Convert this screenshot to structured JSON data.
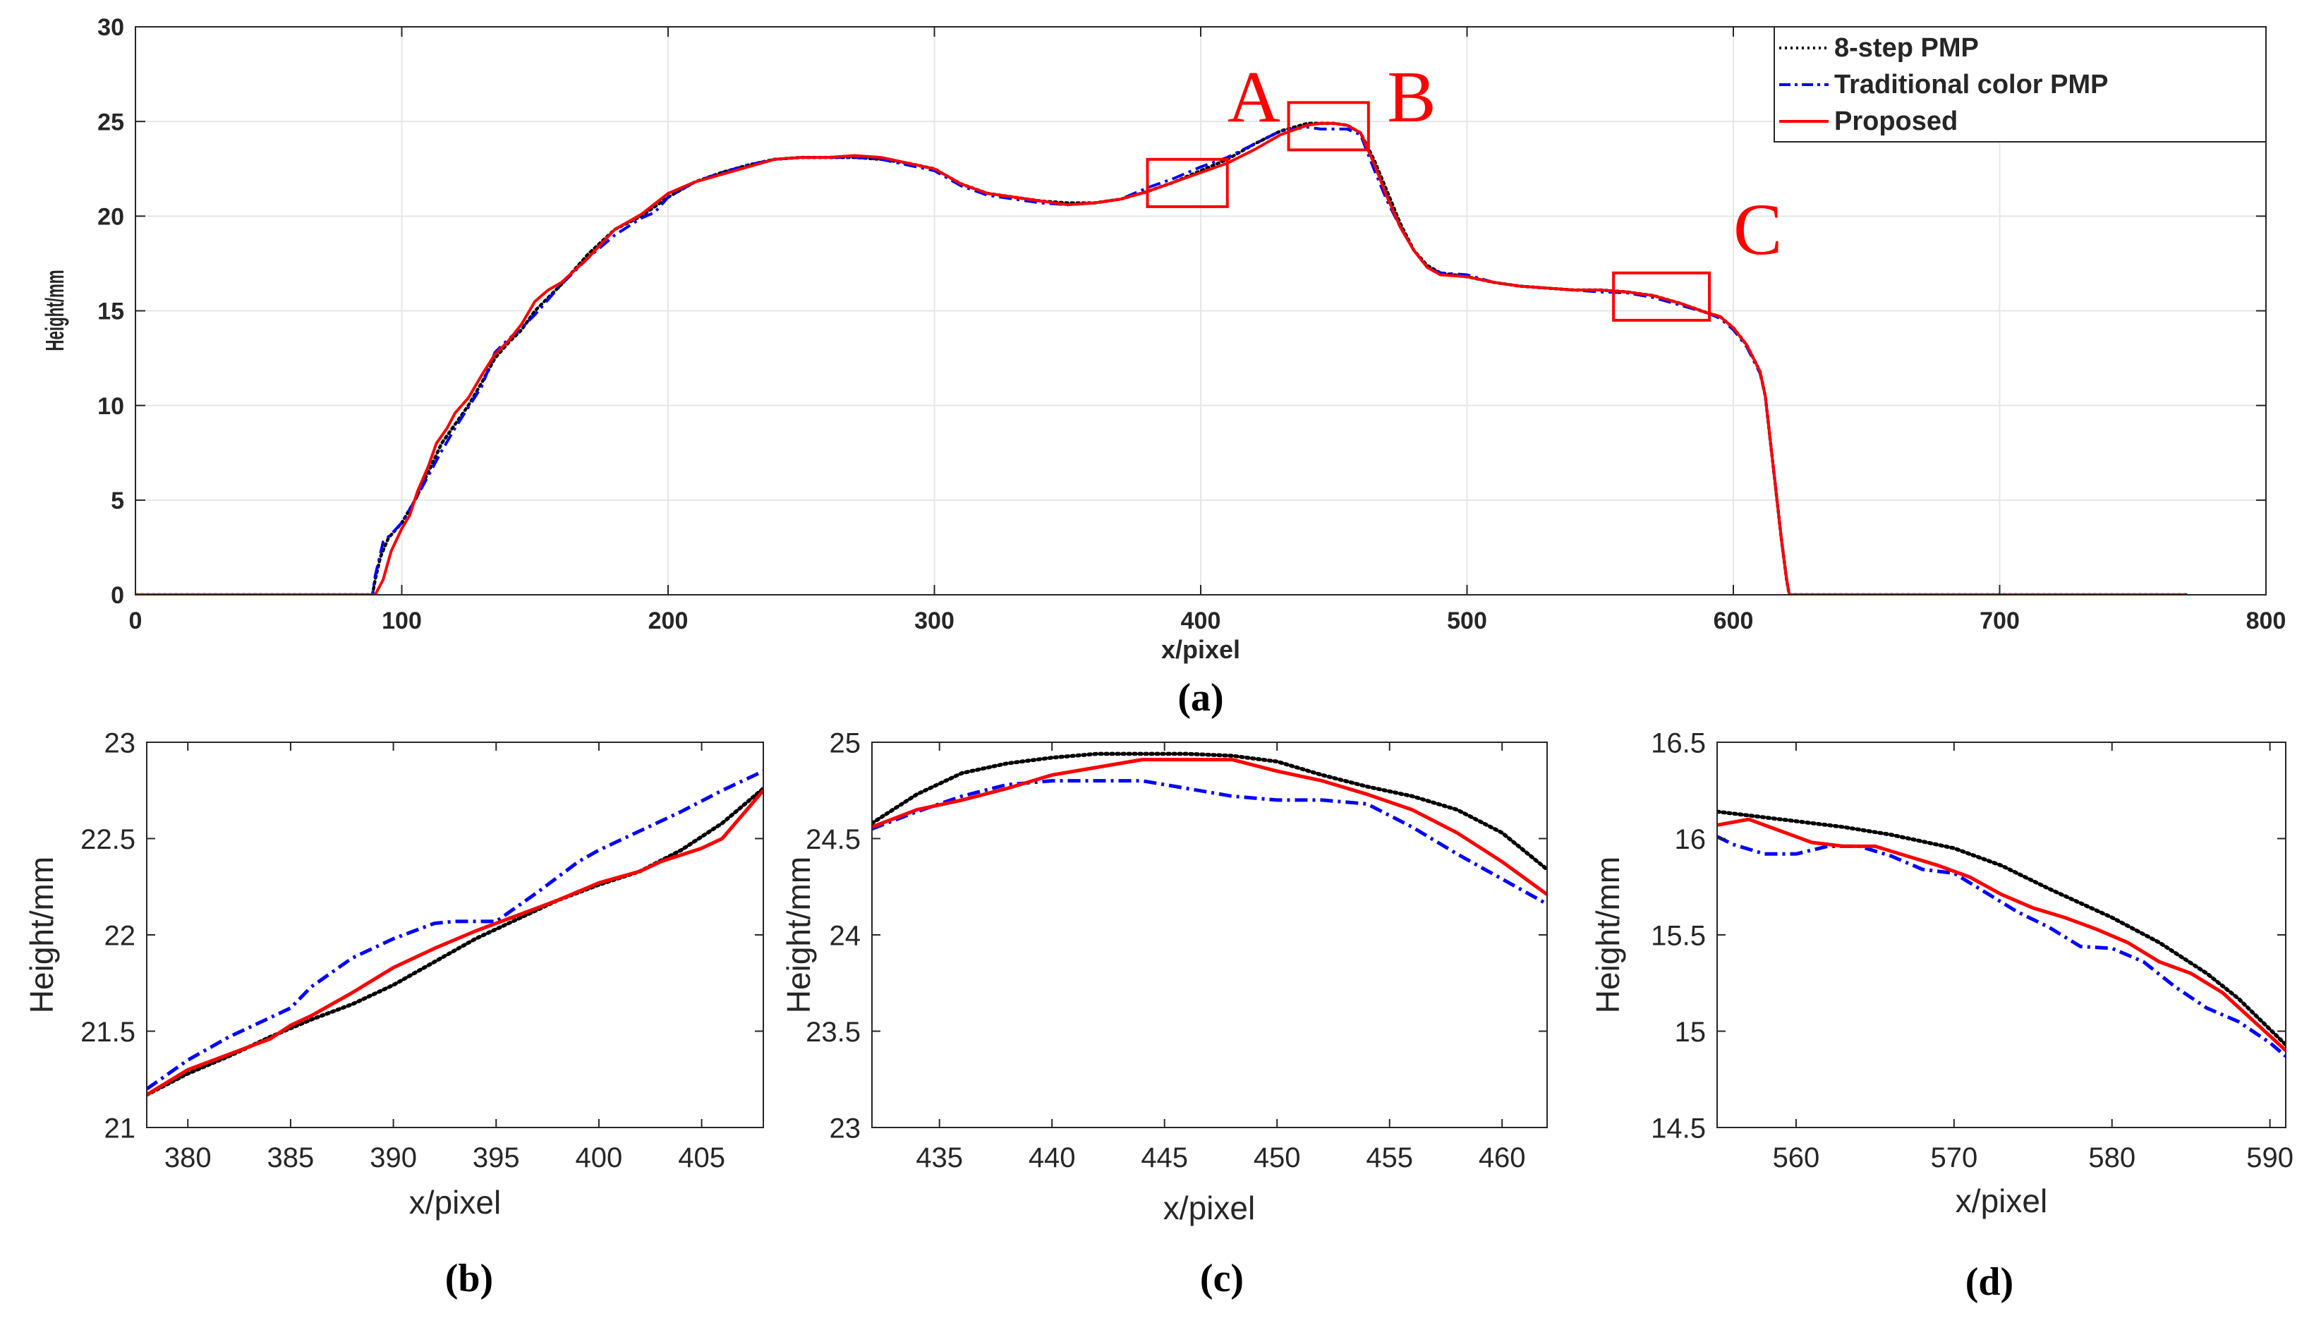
{
  "figure": {
    "colors": {
      "eight_step": "#000000",
      "traditional": "#0000ff",
      "proposed": "#ff0000",
      "grid": "#e6e6e6",
      "axis": "#262626",
      "callout": "#ff0000"
    }
  },
  "chart_data": [
    {
      "id": "a",
      "type": "line",
      "panel_label": "(a)",
      "title": "",
      "xlabel": "x/pixel",
      "ylabel": "Height/mm",
      "xlim": [
        0,
        800
      ],
      "ylim": [
        0,
        30
      ],
      "xticks": [
        0,
        100,
        200,
        300,
        400,
        500,
        600,
        700,
        800
      ],
      "yticks": [
        0,
        5,
        10,
        15,
        20,
        25,
        30
      ],
      "xtick_labels": [
        "0",
        "100",
        "200",
        "300",
        "400",
        "500",
        "600",
        "700",
        "800"
      ],
      "ytick_labels": [
        "0",
        "5",
        "10",
        "15",
        "20",
        "25",
        "30"
      ],
      "grid": true,
      "legend": {
        "position": "top-right",
        "entries": [
          "8-step PMP",
          "Traditional color PMP",
          "Proposed"
        ]
      },
      "annotations": [
        {
          "text": "A",
          "x_range": [
            380,
            410
          ],
          "y_range": [
            20.5,
            23
          ],
          "label_x": 410,
          "label_y": 25
        },
        {
          "text": "B",
          "x_range": [
            433,
            463
          ],
          "y_range": [
            23.5,
            26
          ],
          "label_x": 470,
          "label_y": 25
        },
        {
          "text": "C",
          "x_range": [
            555,
            591
          ],
          "y_range": [
            14.5,
            17
          ],
          "label_x": 600,
          "label_y": 18
        }
      ],
      "series": [
        {
          "name": "8-step PMP",
          "style": "dotted",
          "color": "#000000",
          "x": [
            0,
            89,
            90,
            92,
            95,
            100,
            105,
            110,
            115,
            120,
            125,
            130,
            135,
            140,
            145,
            150,
            160,
            170,
            180,
            190,
            200,
            210,
            220,
            230,
            240,
            250,
            260,
            270,
            280,
            290,
            300,
            310,
            320,
            330,
            340,
            350,
            360,
            370,
            380,
            390,
            400,
            410,
            420,
            430,
            440,
            445,
            450,
            455,
            460,
            465,
            470,
            475,
            480,
            485,
            490,
            500,
            510,
            520,
            530,
            540,
            550,
            560,
            570,
            580,
            590,
            595,
            600,
            605,
            610,
            612,
            614,
            616,
            618,
            620,
            621,
            625,
            700,
            770
          ],
          "y": [
            0,
            0,
            0.8,
            2,
            3,
            3.8,
            5,
            6.5,
            8,
            9,
            10,
            11.2,
            12.5,
            13.3,
            14,
            15,
            16.4,
            18,
            19.3,
            20,
            21,
            21.8,
            22.3,
            22.7,
            23,
            23.1,
            23.1,
            23.1,
            23,
            22.8,
            22.5,
            21.7,
            21.2,
            21,
            20.8,
            20.7,
            20.7,
            20.9,
            21.3,
            21.8,
            22.4,
            23,
            23.8,
            24.5,
            24.9,
            24.9,
            24.9,
            24.8,
            24.4,
            23,
            21.3,
            19.6,
            18.2,
            17.4,
            17,
            16.8,
            16.5,
            16.3,
            16.2,
            16.1,
            16.1,
            16,
            15.8,
            15.4,
            14.9,
            14.7,
            14.1,
            13.2,
            11.8,
            10.5,
            8,
            5.5,
            3,
            0.8,
            0,
            0,
            0,
            0
          ]
        },
        {
          "name": "Traditional color PMP",
          "style": "dashdot",
          "color": "#0000ff",
          "x": [
            0,
            89,
            90,
            93,
            96,
            100,
            105,
            110,
            115,
            120,
            125,
            130,
            135,
            140,
            145,
            150,
            160,
            170,
            180,
            190,
            195,
            200,
            210,
            220,
            230,
            240,
            250,
            260,
            270,
            280,
            290,
            300,
            310,
            320,
            330,
            340,
            350,
            360,
            370,
            380,
            390,
            400,
            410,
            420,
            430,
            440,
            445,
            450,
            455,
            460,
            465,
            470,
            475,
            480,
            485,
            490,
            500,
            510,
            520,
            530,
            540,
            550,
            560,
            570,
            580,
            590,
            595,
            600,
            605,
            610,
            612,
            614,
            616,
            618,
            620,
            621,
            625,
            700,
            770
          ],
          "y": [
            0,
            0,
            1,
            2.8,
            3.2,
            3.8,
            5,
            6.3,
            7.6,
            8.8,
            9.9,
            11,
            12.8,
            13.5,
            14.1,
            14.8,
            16.4,
            17.8,
            19,
            19.9,
            20.2,
            21,
            21.8,
            22.3,
            22.7,
            23,
            23.1,
            23.1,
            23.1,
            23,
            22.7,
            22.4,
            21.6,
            21.1,
            20.9,
            20.7,
            20.6,
            20.7,
            20.9,
            21.5,
            22,
            22.6,
            23.1,
            23.8,
            24.5,
            24.7,
            24.6,
            24.6,
            24.6,
            24.3,
            22.5,
            20.8,
            19.4,
            18.2,
            17.3,
            17,
            16.9,
            16.5,
            16.3,
            16.2,
            16.1,
            16,
            15.95,
            15.7,
            15.3,
            14.9,
            14.6,
            14,
            13.1,
            11.7,
            10.5,
            8,
            5.5,
            3,
            0.8,
            0,
            0,
            0,
            0
          ]
        },
        {
          "name": "Proposed",
          "style": "solid",
          "color": "#ff0000",
          "x": [
            0,
            89,
            90,
            93,
            96,
            100,
            103,
            106,
            110,
            113,
            117,
            120,
            125,
            130,
            135,
            140,
            145,
            150,
            155,
            160,
            170,
            180,
            190,
            200,
            210,
            220,
            230,
            240,
            250,
            260,
            270,
            280,
            290,
            300,
            310,
            320,
            330,
            340,
            350,
            360,
            370,
            380,
            390,
            400,
            410,
            420,
            430,
            440,
            445,
            450,
            455,
            460,
            465,
            470,
            475,
            480,
            485,
            490,
            500,
            510,
            520,
            530,
            540,
            550,
            560,
            570,
            580,
            590,
            595,
            600,
            605,
            610,
            612,
            614,
            616,
            618,
            620,
            621,
            625,
            700,
            770
          ],
          "y": [
            0,
            0,
            0,
            0.8,
            2.3,
            3.5,
            4.2,
            5.5,
            6.8,
            8,
            8.8,
            9.6,
            10.4,
            11.6,
            12.7,
            13.4,
            14.3,
            15.5,
            16.1,
            16.5,
            17.8,
            19.3,
            20.1,
            21.2,
            21.8,
            22.2,
            22.6,
            23,
            23.1,
            23.1,
            23.2,
            23.1,
            22.8,
            22.5,
            21.7,
            21.2,
            21,
            20.8,
            20.6,
            20.7,
            20.9,
            21.3,
            21.8,
            22.3,
            22.8,
            23.5,
            24.3,
            24.8,
            24.9,
            24.9,
            24.8,
            24.4,
            22.8,
            21,
            19.4,
            18.2,
            17.3,
            16.9,
            16.8,
            16.5,
            16.3,
            16.2,
            16.1,
            16.1,
            16,
            15.8,
            15.4,
            14.9,
            14.7,
            14.1,
            13.2,
            11.8,
            10.5,
            8,
            5.5,
            3,
            0.8,
            0,
            0,
            0,
            0
          ]
        }
      ]
    },
    {
      "id": "b",
      "type": "line",
      "panel_label": "(b)",
      "title": "",
      "xlabel": "x/pixel",
      "ylabel": "Height/mm",
      "xlim": [
        378,
        408
      ],
      "ylim": [
        21,
        23
      ],
      "xticks": [
        380,
        385,
        390,
        395,
        400,
        405
      ],
      "yticks": [
        21,
        21.5,
        22,
        22.5,
        23
      ],
      "xtick_labels": [
        "380",
        "385",
        "390",
        "395",
        "400",
        "405"
      ],
      "ytick_labels": [
        "21",
        "21.5",
        "22",
        "22.5",
        "23"
      ],
      "grid": false,
      "series": [
        {
          "name": "8-step PMP",
          "style": "dotted",
          "color": "#000000",
          "x": [
            378,
            380,
            382,
            384,
            386,
            388,
            390,
            392,
            394,
            396,
            398,
            400,
            402,
            404,
            406,
            408
          ],
          "y": [
            21.17,
            21.28,
            21.37,
            21.47,
            21.56,
            21.64,
            21.74,
            21.86,
            21.98,
            22.08,
            22.18,
            22.26,
            22.33,
            22.44,
            22.58,
            22.76
          ]
        },
        {
          "name": "Traditional color PMP",
          "style": "dashdot",
          "color": "#0000ff",
          "x": [
            378,
            380,
            382,
            384,
            385,
            386,
            388,
            390,
            392,
            393,
            395,
            397,
            399,
            400,
            402,
            404,
            406,
            408
          ],
          "y": [
            21.2,
            21.35,
            21.47,
            21.57,
            21.62,
            21.73,
            21.88,
            21.98,
            22.06,
            22.07,
            22.07,
            22.22,
            22.38,
            22.44,
            22.54,
            22.64,
            22.75,
            22.85
          ]
        },
        {
          "name": "Proposed",
          "style": "solid",
          "color": "#ff0000",
          "x": [
            378,
            380,
            382,
            384,
            385,
            386,
            388,
            390,
            392,
            394,
            396,
            398,
            400,
            402,
            403,
            405,
            406,
            408
          ],
          "y": [
            21.17,
            21.3,
            21.38,
            21.46,
            21.53,
            21.58,
            21.7,
            21.83,
            21.93,
            22.02,
            22.1,
            22.18,
            22.27,
            22.33,
            22.38,
            22.45,
            22.5,
            22.75
          ]
        }
      ]
    },
    {
      "id": "c",
      "type": "line",
      "panel_label": "(c)",
      "title": "",
      "xlabel": "x/pixel",
      "ylabel": "Height/mm",
      "xlim": [
        432,
        462
      ],
      "ylim": [
        23,
        25
      ],
      "xticks": [
        435,
        440,
        445,
        450,
        455,
        460
      ],
      "yticks": [
        23,
        23.5,
        24,
        24.5,
        25
      ],
      "xtick_labels": [
        "435",
        "440",
        "445",
        "450",
        "455",
        "460"
      ],
      "ytick_labels": [
        "23",
        "23.5",
        "24",
        "24.5",
        "25"
      ],
      "grid": false,
      "series": [
        {
          "name": "8-step PMP",
          "style": "dotted",
          "color": "#000000",
          "x": [
            432,
            434,
            436,
            438,
            440,
            442,
            444,
            446,
            448,
            450,
            452,
            454,
            456,
            458,
            460,
            462
          ],
          "y": [
            24.58,
            24.73,
            24.84,
            24.89,
            24.92,
            24.94,
            24.94,
            24.94,
            24.93,
            24.9,
            24.83,
            24.77,
            24.72,
            24.65,
            24.53,
            24.34
          ]
        },
        {
          "name": "Traditional color PMP",
          "style": "dashdot",
          "color": "#0000ff",
          "x": [
            432,
            434,
            436,
            438,
            440,
            442,
            444,
            446,
            448,
            450,
            452,
            454,
            456,
            458,
            460,
            462
          ],
          "y": [
            24.55,
            24.64,
            24.72,
            24.78,
            24.8,
            24.8,
            24.8,
            24.76,
            24.72,
            24.7,
            24.7,
            24.68,
            24.56,
            24.42,
            24.29,
            24.16
          ]
        },
        {
          "name": "Proposed",
          "style": "solid",
          "color": "#ff0000",
          "x": [
            432,
            434,
            436,
            438,
            440,
            442,
            444,
            446,
            448,
            450,
            452,
            454,
            456,
            458,
            460,
            462
          ],
          "y": [
            24.56,
            24.65,
            24.7,
            24.76,
            24.83,
            24.87,
            24.91,
            24.91,
            24.91,
            24.85,
            24.8,
            24.73,
            24.65,
            24.53,
            24.38,
            24.21
          ]
        }
      ]
    },
    {
      "id": "d",
      "type": "line",
      "panel_label": "(d)",
      "title": "",
      "xlabel": "x/pixel",
      "ylabel": "Height/mm",
      "xlim": [
        555,
        591
      ],
      "ylim": [
        14.5,
        16.5
      ],
      "xticks": [
        560,
        570,
        580,
        590
      ],
      "yticks": [
        14.5,
        15,
        15.5,
        16,
        16.5
      ],
      "xtick_labels": [
        "560",
        "570",
        "580",
        "590"
      ],
      "ytick_labels": [
        "14.5",
        "15",
        "15.5",
        "16",
        "16.5"
      ],
      "grid": false,
      "series": [
        {
          "name": "8-step PMP",
          "style": "dotted",
          "color": "#000000",
          "x": [
            555,
            557,
            560,
            563,
            566,
            570,
            573,
            576,
            580,
            583,
            586,
            588,
            590,
            591
          ],
          "y": [
            16.14,
            16.12,
            16.09,
            16.06,
            16.02,
            15.95,
            15.86,
            15.74,
            15.59,
            15.46,
            15.3,
            15.17,
            15.01,
            14.93
          ]
        },
        {
          "name": "Traditional color PMP",
          "style": "dashdot",
          "color": "#0000ff",
          "x": [
            555,
            556,
            558,
            560,
            562,
            564,
            566,
            568,
            570,
            572,
            574,
            576,
            578,
            580,
            582,
            584,
            586,
            588,
            590,
            591
          ],
          "y": [
            16.01,
            15.97,
            15.92,
            15.92,
            15.96,
            15.96,
            15.91,
            15.84,
            15.82,
            15.72,
            15.62,
            15.54,
            15.44,
            15.43,
            15.36,
            15.23,
            15.12,
            15.05,
            14.94,
            14.87
          ]
        },
        {
          "name": "Proposed",
          "style": "solid",
          "color": "#ff0000",
          "x": [
            555,
            557,
            559,
            561,
            563,
            565,
            567,
            569,
            571,
            573,
            575,
            577,
            579,
            581,
            583,
            585,
            587,
            589,
            591
          ],
          "y": [
            16.07,
            16.1,
            16.04,
            15.98,
            15.96,
            15.96,
            15.91,
            15.86,
            15.8,
            15.71,
            15.64,
            15.59,
            15.53,
            15.46,
            15.36,
            15.3,
            15.2,
            15.05,
            14.9
          ]
        }
      ]
    }
  ]
}
